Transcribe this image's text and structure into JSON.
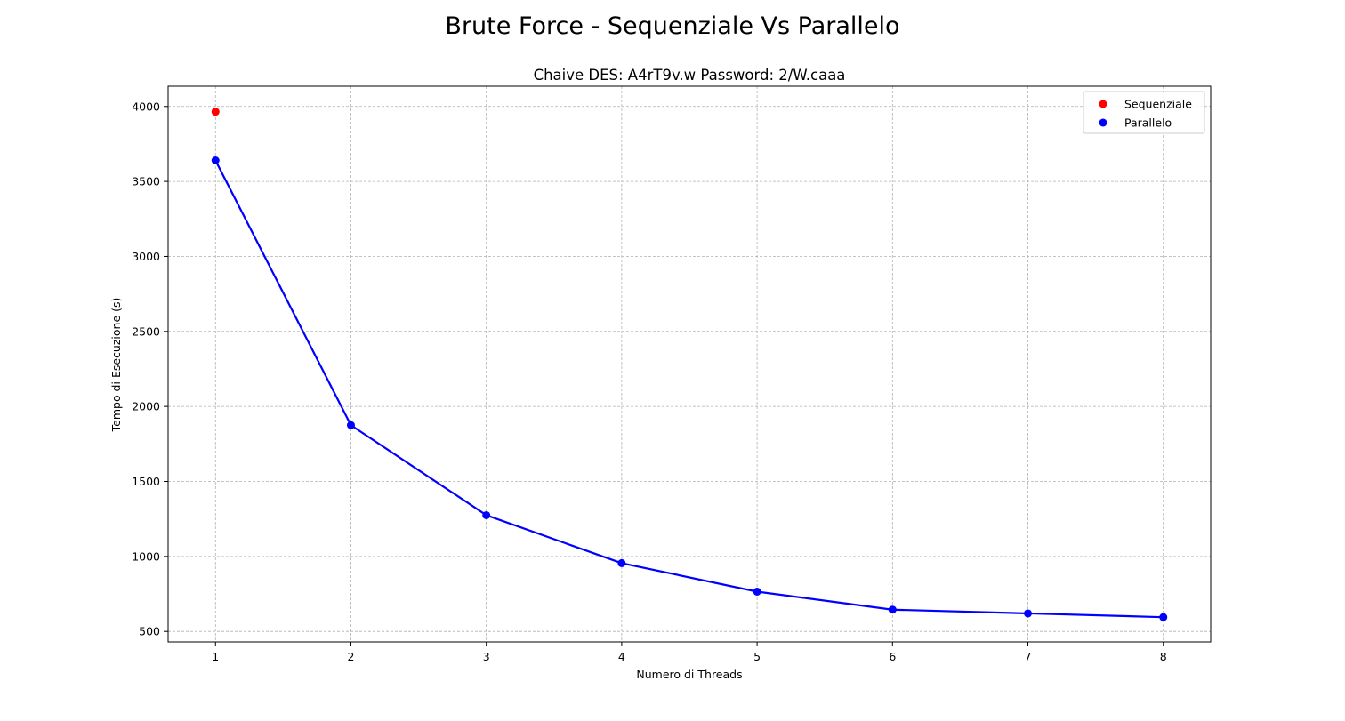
{
  "figure_title": "Brute Force - Sequenziale Vs Parallelo",
  "chart_data": {
    "type": "line",
    "title": "Chaive DES: A4rT9v.w Password: 2/W.caaa",
    "xlabel": "Numero di Threads",
    "ylabel": "Tempo di Esecuzione (s)",
    "xlim": [
      0.65,
      8.35
    ],
    "ylim": [
      430,
      4135
    ],
    "xticks": [
      1,
      2,
      3,
      4,
      5,
      6,
      7,
      8
    ],
    "yticks": [
      500,
      1000,
      1500,
      2000,
      2500,
      3000,
      3500,
      4000
    ],
    "grid": true,
    "legend_position": "top-right",
    "series": [
      {
        "name": "Sequenziale",
        "color": "#ff0000",
        "style": "marker",
        "x": [
          1
        ],
        "y": [
          3965
        ]
      },
      {
        "name": "Parallelo",
        "color": "#0000ff",
        "style": "line-marker",
        "x": [
          1,
          2,
          3,
          4,
          5,
          6,
          7,
          8
        ],
        "y": [
          3640,
          1875,
          1275,
          955,
          765,
          645,
          620,
          595
        ]
      }
    ]
  }
}
